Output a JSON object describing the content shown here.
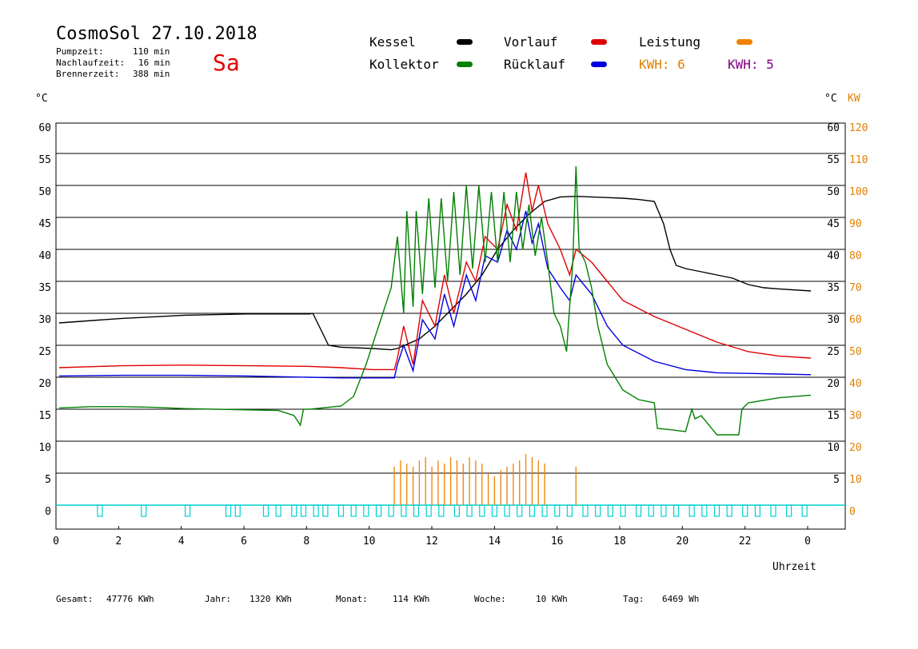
{
  "header": {
    "title": "CosmoSol 27.10.2018",
    "day": "Sa",
    "stats": [
      {
        "label": "Pumpzeit:",
        "value": "110 min"
      },
      {
        "label": "Nachlaufzeit:",
        "value": "16 min"
      },
      {
        "label": "Brennerzeit:",
        "value": "388 min"
      }
    ]
  },
  "legend": {
    "kessel": {
      "label": "Kessel",
      "color": "#000000"
    },
    "vorlauf": {
      "label": "Vorlauf",
      "color": "#e00000"
    },
    "leistung": {
      "label": "Leistung",
      "color": "#f08000"
    },
    "kollektor": {
      "label": "Kollektor",
      "color": "#008000"
    },
    "ruecklauf": {
      "label": "Rücklauf",
      "color": "#0000e0"
    },
    "kwh1": {
      "label": "KWH: 6",
      "color": "#e08000"
    },
    "kwh2": {
      "label": "KWH: 5",
      "color": "#800080"
    }
  },
  "axes": {
    "left_unit": "°C",
    "right_unit": "°C",
    "right_unit2": "KW",
    "xlabel": "Uhrzeit"
  },
  "footer": {
    "gesamt_label": "Gesamt:",
    "gesamt_value": "47776 KWh",
    "jahr_label": "Jahr:",
    "jahr_value": "1320 KWh",
    "monat_label": "Monat:",
    "monat_value": "114 KWh",
    "woche_label": "Woche:",
    "woche_value": "10 KWh",
    "tag_label": "Tag:",
    "tag_value": "6469 Wh"
  },
  "chart_data": {
    "type": "line",
    "title": "CosmoSol 27.10.2018",
    "xlabel": "Uhrzeit",
    "ylabel": "°C",
    "ylabel_right": "KW",
    "xlim": [
      0,
      24
    ],
    "ylim": [
      0,
      60
    ],
    "ylim_right": [
      0,
      120
    ],
    "grid": true,
    "x_ticks": [
      "0",
      "2",
      "4",
      "6",
      "8",
      "10",
      "12",
      "14",
      "16",
      "18",
      "20",
      "22",
      "0"
    ],
    "y_ticks_left": [
      "0",
      "5",
      "10",
      "15",
      "20",
      "25",
      "30",
      "35",
      "40",
      "45",
      "50",
      "55",
      "60"
    ],
    "y_ticks_right": [
      "5",
      "10",
      "15",
      "20",
      "25",
      "30",
      "35",
      "40",
      "45",
      "50",
      "55",
      "60"
    ],
    "y_ticks_right2": [
      "0",
      "10",
      "20",
      "30",
      "40",
      "50",
      "60",
      "70",
      "80",
      "90",
      "100",
      "110",
      "120"
    ],
    "series": [
      {
        "name": "Kessel",
        "color": "#000000",
        "x": [
          0,
          2,
          4,
          6,
          8,
          8.1,
          8.4,
          8.6,
          9,
          10,
          10.6,
          10.8,
          11.5,
          12,
          12.5,
          13,
          13.5,
          14,
          14.5,
          15,
          15.5,
          16,
          16.5,
          17,
          18,
          18.5,
          19,
          19.3,
          19.5,
          19.7,
          20,
          20.5,
          21,
          21.5,
          22,
          22.5,
          23,
          24
        ],
        "y": [
          28.5,
          29.2,
          29.7,
          29.9,
          29.9,
          30,
          27,
          25,
          24.7,
          24.5,
          24.3,
          24.5,
          26,
          28,
          30.5,
          33,
          36,
          40,
          43,
          45.5,
          47.5,
          48.2,
          48.3,
          48.2,
          48,
          47.8,
          47.5,
          44,
          40,
          37.5,
          37,
          36.5,
          36,
          35.5,
          34.5,
          34,
          33.8,
          33.5
        ]
      },
      {
        "name": "Vorlauf",
        "color": "#e00000",
        "x": [
          0,
          2,
          4,
          6,
          8,
          9,
          10,
          10.7,
          10.8,
          11,
          11.3,
          11.6,
          12,
          12.3,
          12.6,
          13,
          13.3,
          13.6,
          14,
          14.3,
          14.6,
          14.9,
          15.1,
          15.3,
          15.6,
          16,
          16.3,
          16.5,
          17,
          17.5,
          18,
          19,
          20,
          21,
          22,
          23,
          24
        ],
        "y": [
          21.5,
          21.8,
          21.9,
          21.8,
          21.7,
          21.5,
          21.2,
          21.2,
          23,
          28,
          22,
          32,
          28,
          36,
          30,
          38,
          35,
          42,
          40,
          47,
          43,
          52,
          46,
          50,
          44,
          40,
          36,
          40,
          38,
          35,
          32,
          29.5,
          27.5,
          25.5,
          24,
          23.3,
          23
        ]
      },
      {
        "name": "Rücklauf",
        "color": "#0000e0",
        "x": [
          0,
          2,
          4,
          6,
          8,
          9,
          10,
          10.7,
          10.8,
          11,
          11.3,
          11.6,
          12,
          12.3,
          12.6,
          13,
          13.3,
          13.6,
          14,
          14.3,
          14.6,
          14.9,
          15.1,
          15.3,
          15.6,
          16,
          16.3,
          16.5,
          17,
          17.5,
          18,
          19,
          20,
          21,
          22,
          23,
          24
        ],
        "y": [
          20.2,
          20.3,
          20.3,
          20.2,
          20,
          19.9,
          19.9,
          19.9,
          22,
          25,
          21,
          29,
          26,
          33,
          28,
          36,
          32,
          39,
          38,
          43,
          40,
          46,
          41,
          44,
          37,
          34,
          32,
          36,
          33,
          28,
          25,
          22.5,
          21.2,
          20.7,
          20.6,
          20.5,
          20.4
        ]
      },
      {
        "name": "Kollektor",
        "color": "#008000",
        "x": [
          0,
          1,
          2,
          3,
          4,
          5,
          6,
          7,
          7.5,
          7.7,
          7.8,
          8,
          9,
          9.4,
          9.8,
          10.2,
          10.6,
          10.7,
          10.8,
          11,
          11.1,
          11.3,
          11.4,
          11.6,
          11.8,
          12,
          12.2,
          12.4,
          12.6,
          12.8,
          13,
          13.2,
          13.4,
          13.6,
          13.8,
          14,
          14.2,
          14.4,
          14.6,
          14.8,
          15,
          15.2,
          15.4,
          15.6,
          15.8,
          16,
          16.2,
          16.4,
          16.5,
          16.6,
          16.8,
          17,
          17.2,
          17.5,
          18,
          18.5,
          19,
          19.1,
          19.5,
          20,
          20.2,
          20.3,
          20.5,
          21,
          21.3,
          21.7,
          21.8,
          22,
          23,
          24
        ],
        "y": [
          15.2,
          15.4,
          15.4,
          15.3,
          15.1,
          15,
          14.9,
          14.8,
          14,
          12.5,
          15,
          15,
          15.5,
          17,
          22,
          28,
          34,
          38,
          42,
          30,
          46,
          31,
          46,
          33,
          48,
          34,
          48,
          35,
          49,
          36,
          50,
          37,
          50,
          38,
          49,
          38,
          49,
          38,
          49,
          40,
          47,
          39,
          45,
          38,
          30,
          28,
          24,
          38,
          53,
          40,
          38,
          34,
          28,
          22,
          18,
          16.5,
          16,
          12,
          11.8,
          11.5,
          15,
          13.5,
          14,
          11,
          11,
          11,
          15,
          16,
          16.8,
          17.2
        ]
      }
    ],
    "bars": {
      "name": "Leistung",
      "x": [
        10.7,
        10.9,
        11.1,
        11.3,
        11.5,
        11.7,
        11.9,
        12.1,
        12.3,
        12.5,
        12.7,
        12.9,
        13.1,
        13.3,
        13.5,
        13.7,
        13.9,
        14.1,
        14.3,
        14.5,
        14.7,
        14.9,
        15.1,
        15.3,
        15.5,
        16.5
      ],
      "values_kw": [
        12,
        14,
        13,
        12,
        14,
        15,
        12,
        14,
        13,
        15,
        14,
        13,
        15,
        14,
        13,
        10,
        9,
        11,
        12,
        13,
        14,
        16,
        15,
        14,
        13,
        12
      ]
    },
    "pump_pulses_hours": [
      1.3,
      2.7,
      4.1,
      5.4,
      5.7,
      6.6,
      7.0,
      7.5,
      7.8,
      8.2,
      8.5,
      9.0,
      9.4,
      9.8,
      10.2,
      10.6,
      11.0,
      11.4,
      11.8,
      12.2,
      12.7,
      13.1,
      13.5,
      13.9,
      14.3,
      14.7,
      15.1,
      15.5,
      15.9,
      16.3,
      16.8,
      17.2,
      17.6,
      18.0,
      18.5,
      18.9,
      19.3,
      19.7,
      20.2,
      20.6,
      21.0,
      21.4,
      21.9,
      22.3,
      22.8,
      23.3,
      23.8
    ]
  }
}
